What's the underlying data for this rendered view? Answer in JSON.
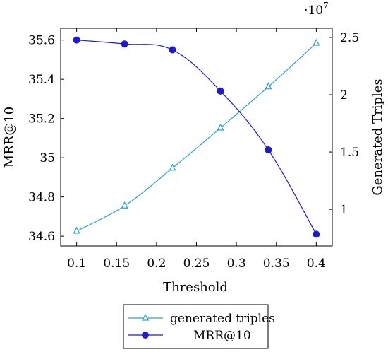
{
  "chart_data": {
    "type": "line",
    "xlabel": "Threshold",
    "ylabel_left": "MRR@10",
    "ylabel_right": "Generated Triples",
    "right_axis_multiplier": "·10",
    "right_axis_exponent": "7",
    "x_ticks": [
      "0.1",
      "0.15",
      "0.2",
      "0.25",
      "0.3",
      "0.35",
      "0.4"
    ],
    "y_left_ticks": [
      "34.6",
      "34.8",
      "35",
      "35.2",
      "35.4",
      "35.6"
    ],
    "y_right_ticks": [
      "1",
      "1.5",
      "2",
      "2.5"
    ],
    "xlim": [
      0.08,
      0.42
    ],
    "ylim_left": [
      34.55,
      35.66
    ],
    "ylim_right": [
      0.68,
      2.58
    ],
    "legend_position": "bottom-center",
    "series": [
      {
        "name": "generated triples",
        "axis": "right",
        "color": "#1fa3d9",
        "marker": "triangle",
        "x": [
          0.1,
          0.16,
          0.22,
          0.28,
          0.34,
          0.4
        ],
        "y": [
          0.81,
          1.03,
          1.36,
          1.71,
          2.07,
          2.45
        ]
      },
      {
        "name": "MRR@10",
        "axis": "left",
        "color": "#1a1ad6",
        "marker": "circle",
        "x": [
          0.1,
          0.16,
          0.22,
          0.28,
          0.34,
          0.4
        ],
        "y": [
          35.6,
          35.58,
          35.55,
          35.34,
          35.04,
          34.61
        ]
      }
    ]
  }
}
